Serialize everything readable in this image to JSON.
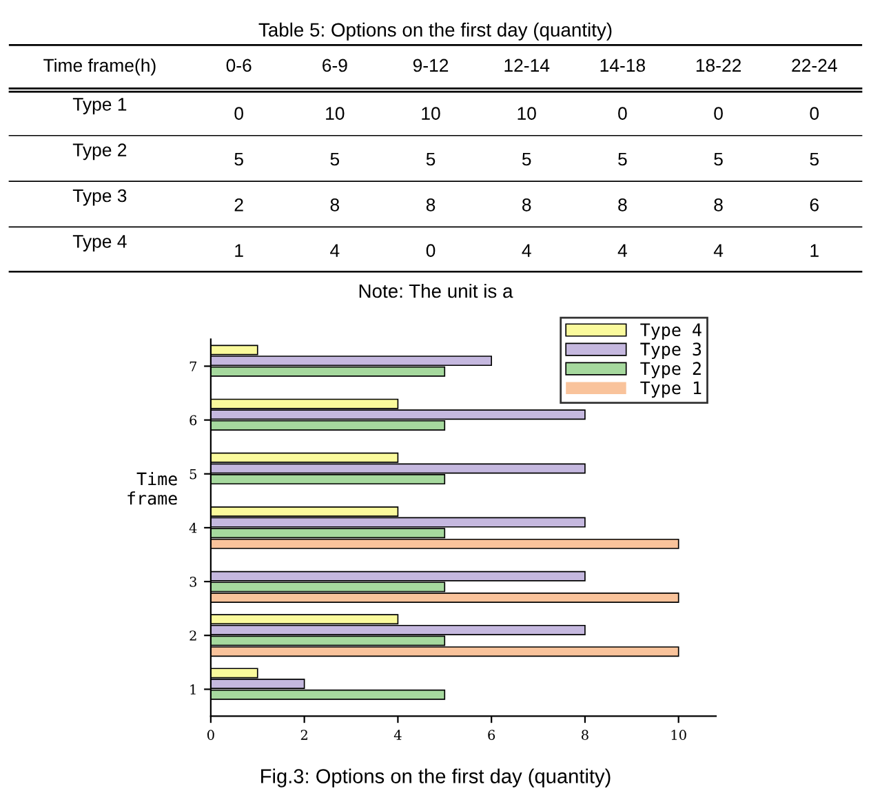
{
  "chart_data": [
    {
      "type": "heatmap",
      "title": "Table 5: Options on the first day (quantity)",
      "xlabel": "Time frame(h)",
      "categories": [
        "0-6",
        "6-9",
        "9-12",
        "12-14",
        "14-18",
        "18-22",
        "22-24"
      ],
      "y_categories": [
        "Type 1",
        "Type 2",
        "Type 3",
        "Type 4"
      ],
      "cells": [
        [
          0,
          10,
          10,
          10,
          0,
          0,
          0
        ],
        [
          5,
          5,
          5,
          5,
          5,
          5,
          5
        ],
        [
          2,
          8,
          8,
          8,
          8,
          8,
          6
        ],
        [
          1,
          4,
          0,
          4,
          4,
          4,
          1
        ]
      ],
      "data_labels": true,
      "annotations": [
        "Note: The unit is a"
      ]
    },
    {
      "type": "bar",
      "orientation": "horizontal",
      "title": "Fig.3: Options on the first day (quantity)",
      "ylabel": "Time\nframe",
      "categories": [
        "7",
        "6",
        "5",
        "4",
        "3",
        "2",
        "1"
      ],
      "series": [
        {
          "name": "Type 4",
          "color": "#fafa9c",
          "values": [
            1,
            4,
            4,
            4,
            0,
            4,
            1
          ]
        },
        {
          "name": "Type 3",
          "color": "#c5b8df",
          "values": [
            6,
            8,
            8,
            8,
            8,
            8,
            2
          ]
        },
        {
          "name": "Type 2",
          "color": "#a6d99e",
          "values": [
            5,
            5,
            5,
            5,
            5,
            5,
            5
          ]
        },
        {
          "name": "Type 1",
          "color": "#f9c39b",
          "values": [
            0,
            0,
            0,
            10,
            10,
            10,
            0
          ]
        }
      ],
      "xlim": [
        0,
        10.8
      ],
      "xticks": [
        0,
        2,
        4,
        6,
        8,
        10
      ],
      "legend": "top right"
    }
  ]
}
